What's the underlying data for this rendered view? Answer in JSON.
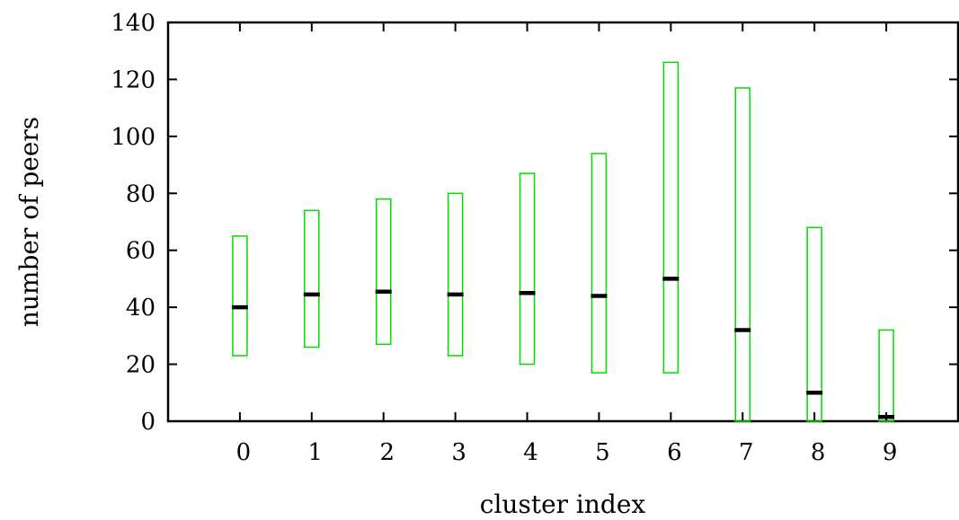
{
  "chart_data": {
    "type": "box",
    "xlabel": "cluster index",
    "ylabel": "number of peers",
    "ylim": [
      0,
      140
    ],
    "yticks": [
      0,
      20,
      40,
      60,
      80,
      100,
      120,
      140
    ],
    "xlim": [
      -1,
      10
    ],
    "categories": [
      "0",
      "1",
      "2",
      "3",
      "4",
      "5",
      "6",
      "7",
      "8",
      "9"
    ],
    "series": [
      {
        "x": [
          0,
          1,
          2,
          3,
          4,
          5,
          6,
          7,
          8,
          9
        ],
        "low": [
          23,
          26,
          27,
          23,
          20,
          17,
          17,
          0,
          0,
          0
        ],
        "high": [
          65,
          74,
          78,
          80,
          87,
          94,
          126,
          117,
          68,
          32
        ],
        "median": [
          40,
          44.5,
          45.5,
          44.5,
          45,
          44,
          50,
          32,
          10,
          1.5
        ]
      }
    ],
    "box_color": "#00dd00",
    "median_color": "#000000",
    "grid": false,
    "legend": "none"
  }
}
